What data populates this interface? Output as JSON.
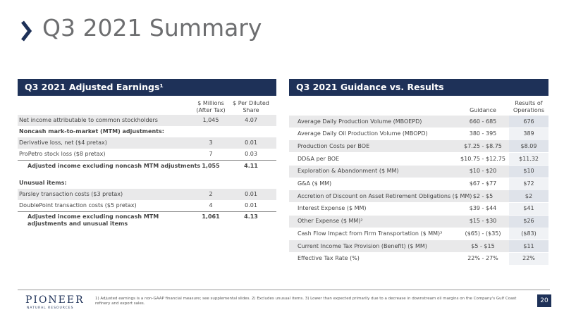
{
  "header": {
    "title": "Q3 2021 Summary"
  },
  "left_table": {
    "title": "Q3 2021 Adjusted Earnings¹",
    "columns": [
      "$ Millions (After Tax)",
      "$ Per Diluted Share"
    ],
    "rows": [
      {
        "label": "Net income attributable to common stockholders",
        "values": [
          "1,045",
          "4.07"
        ]
      },
      {
        "label": "Noncash mark-to-market (MTM) adjustments:"
      },
      {
        "label": "Derivative loss, net ($4 pretax)",
        "values": [
          "3",
          "0.01"
        ]
      },
      {
        "label": "ProPetro stock loss ($8 pretax)",
        "values": [
          "7",
          "0.03"
        ]
      },
      {
        "label": "Adjusted income excluding noncash MTM adjustments",
        "values": [
          "1,055",
          "4.11"
        ]
      },
      {
        "label": "Unusual items:"
      },
      {
        "label": "Parsley transaction costs ($3 pretax)",
        "values": [
          "2",
          "0.01"
        ]
      },
      {
        "label": "DoublePoint transaction costs ($5 pretax)",
        "values": [
          "4",
          "0.01"
        ]
      },
      {
        "label": "Adjusted income excluding noncash MTM adjustments and unusual items",
        "values": [
          "1,061",
          "4.13"
        ]
      }
    ]
  },
  "right_table": {
    "title": "Q3 2021 Guidance vs. Results",
    "columns": [
      "Guidance",
      "Results of Operations"
    ],
    "rows": [
      {
        "label": "Average Daily Production Volume (MBOEPD)",
        "values": [
          "660 - 685",
          "676"
        ]
      },
      {
        "label": "Average Daily Oil Production Volume (MBOPD)",
        "values": [
          "380 - 395",
          "389"
        ]
      },
      {
        "label": "Production Costs per BOE",
        "values": [
          "$7.25 - $8.75",
          "$8.09"
        ]
      },
      {
        "label": "DD&A per BOE",
        "values": [
          "$10.75 - $12.75",
          "$11.32"
        ]
      },
      {
        "label": "Exploration & Abandonment ($ MM)",
        "values": [
          "$10 - $20",
          "$10"
        ]
      },
      {
        "label": "G&A ($ MM)",
        "values": [
          "$67 - $77",
          "$72"
        ]
      },
      {
        "label": "Accretion of Discount on Asset Retirement Obligations ($ MM)",
        "values": [
          "$2 - $5",
          "$2"
        ]
      },
      {
        "label": "Interest Expense ($ MM)",
        "values": [
          "$39 - $44",
          "$41"
        ]
      },
      {
        "label": "Other Expense ($ MM)²",
        "values": [
          "$15 - $30",
          "$26"
        ]
      },
      {
        "label": "Cash Flow Impact from Firm Transportation ($ MM)³",
        "values": [
          "($65) - ($35)",
          "($83)"
        ]
      },
      {
        "label": "Current Income Tax Provision (Benefit) ($ MM)",
        "values": [
          "$5 - $15",
          "$11"
        ]
      },
      {
        "label": "Effective Tax Rate (%)",
        "values": [
          "22% - 27%",
          "22%"
        ]
      }
    ]
  },
  "footer": {
    "logo": "PIONEER",
    "logo_sub": "NATURAL RESOURCES",
    "footnote": "1) Adjusted earnings is a non-GAAP financial measure; see supplemental slides.  2) Excludes unusual items.  3) Lower than expected primarily due to a decrease in downstream oil margins on the Company's Gulf Coast refinery and export sales.",
    "page": "20"
  }
}
